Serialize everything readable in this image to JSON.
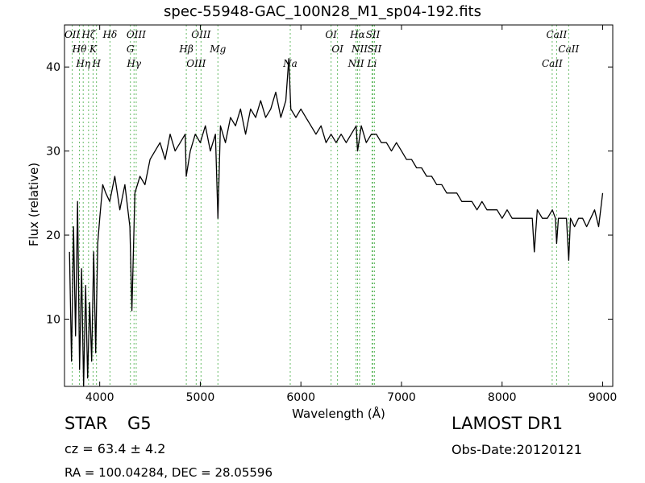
{
  "chart_data": {
    "type": "line",
    "title": "spec-55948-GAC_100N28_M1_sp04-192.fits",
    "xlabel": "Wavelength (Å)",
    "ylabel": "Flux (relative)",
    "xlim": [
      3650,
      9100
    ],
    "ylim": [
      2,
      45
    ],
    "xticks": [
      4000,
      5000,
      6000,
      7000,
      8000,
      9000
    ],
    "yticks": [
      10,
      20,
      30,
      40
    ],
    "grid": false,
    "line_color": "#000000",
    "marker_color": "#66bb66",
    "series": [
      {
        "x": [
          3700,
          3720,
          3740,
          3760,
          3780,
          3800,
          3820,
          3840,
          3860,
          3880,
          3900,
          3920,
          3940,
          3960,
          3980,
          4000,
          4030,
          4060,
          4100,
          4150,
          4200,
          4250,
          4300,
          4320,
          4350,
          4400,
          4450,
          4500,
          4550,
          4600,
          4650,
          4700,
          4750,
          4800,
          4850,
          4860,
          4900,
          4950,
          5000,
          5050,
          5100,
          5150,
          5175,
          5200,
          5250,
          5300,
          5350,
          5400,
          5450,
          5500,
          5550,
          5600,
          5650,
          5700,
          5750,
          5800,
          5850,
          5880,
          5900,
          5950,
          6000,
          6050,
          6100,
          6150,
          6200,
          6250,
          6300,
          6350,
          6400,
          6450,
          6500,
          6550,
          6563,
          6600,
          6650,
          6700,
          6750,
          6800,
          6850,
          6900,
          6950,
          7000,
          7050,
          7100,
          7150,
          7200,
          7250,
          7300,
          7350,
          7400,
          7450,
          7500,
          7550,
          7600,
          7650,
          7700,
          7750,
          7800,
          7850,
          7900,
          7950,
          8000,
          8050,
          8100,
          8150,
          8200,
          8250,
          8300,
          8320,
          8350,
          8400,
          8450,
          8500,
          8530,
          8542,
          8560,
          8600,
          8640,
          8662,
          8680,
          8720,
          8760,
          8800,
          8840,
          8880,
          8920,
          8960,
          9000
        ],
        "y": [
          18,
          5,
          21,
          8,
          24,
          4,
          16,
          2,
          14,
          3,
          12,
          5,
          18,
          6,
          19,
          22,
          26,
          25,
          24,
          27,
          23,
          26,
          21,
          11,
          25,
          27,
          26,
          29,
          30,
          31,
          29,
          32,
          30,
          31,
          32,
          27,
          30,
          32,
          31,
          33,
          30,
          32,
          22,
          33,
          31,
          34,
          33,
          35,
          32,
          35,
          34,
          36,
          34,
          35,
          37,
          34,
          36,
          41,
          35,
          34,
          35,
          34,
          33,
          32,
          33,
          31,
          32,
          31,
          32,
          31,
          32,
          33,
          30,
          33,
          31,
          32,
          32,
          31,
          31,
          30,
          31,
          30,
          29,
          29,
          28,
          28,
          27,
          27,
          26,
          26,
          25,
          25,
          25,
          24,
          24,
          24,
          23,
          24,
          23,
          23,
          23,
          22,
          23,
          22,
          22,
          22,
          22,
          22,
          18,
          23,
          22,
          22,
          23,
          22,
          19,
          22,
          22,
          22,
          17,
          22,
          21,
          22,
          22,
          21,
          22,
          23,
          21,
          25
        ]
      }
    ],
    "lines": [
      {
        "label": "OII",
        "x": 3727
      },
      {
        "label": "Hθ",
        "x": 3798
      },
      {
        "label": "Hη",
        "x": 3836
      },
      {
        "label": "Hζ",
        "x": 3889
      },
      {
        "label": "K",
        "x": 3934
      },
      {
        "label": "H",
        "x": 3968
      },
      {
        "label": "Hδ",
        "x": 4102
      },
      {
        "label": "G",
        "x": 4305
      },
      {
        "label": "Hγ",
        "x": 4341
      },
      {
        "label": "OIII",
        "x": 4363
      },
      {
        "label": "Hβ",
        "x": 4861
      },
      {
        "label": "OIII",
        "x": 4959
      },
      {
        "label": "OIII",
        "x": 5007
      },
      {
        "label": "Mg",
        "x": 5175
      },
      {
        "label": "Na",
        "x": 5894
      },
      {
        "label": "OI",
        "x": 6300
      },
      {
        "label": "OI",
        "x": 6364
      },
      {
        "label": "NII",
        "x": 6548
      },
      {
        "label": "Hα",
        "x": 6563
      },
      {
        "label": "NII",
        "x": 6583
      },
      {
        "label": "Li",
        "x": 6707
      },
      {
        "label": "SII",
        "x": 6716
      },
      {
        "label": "SII",
        "x": 6731
      },
      {
        "label": "CaII",
        "x": 8498
      },
      {
        "label": "CaII",
        "x": 8542
      },
      {
        "label": "CaII",
        "x": 8662
      }
    ]
  },
  "annotations": {
    "class": "STAR",
    "subclass": "G5",
    "survey": "LAMOST DR1",
    "cz": "cz = 63.4  ± 4.2",
    "obs_date": "Obs-Date:20120121",
    "coords": "RA = 100.04284, DEC = 28.05596"
  }
}
